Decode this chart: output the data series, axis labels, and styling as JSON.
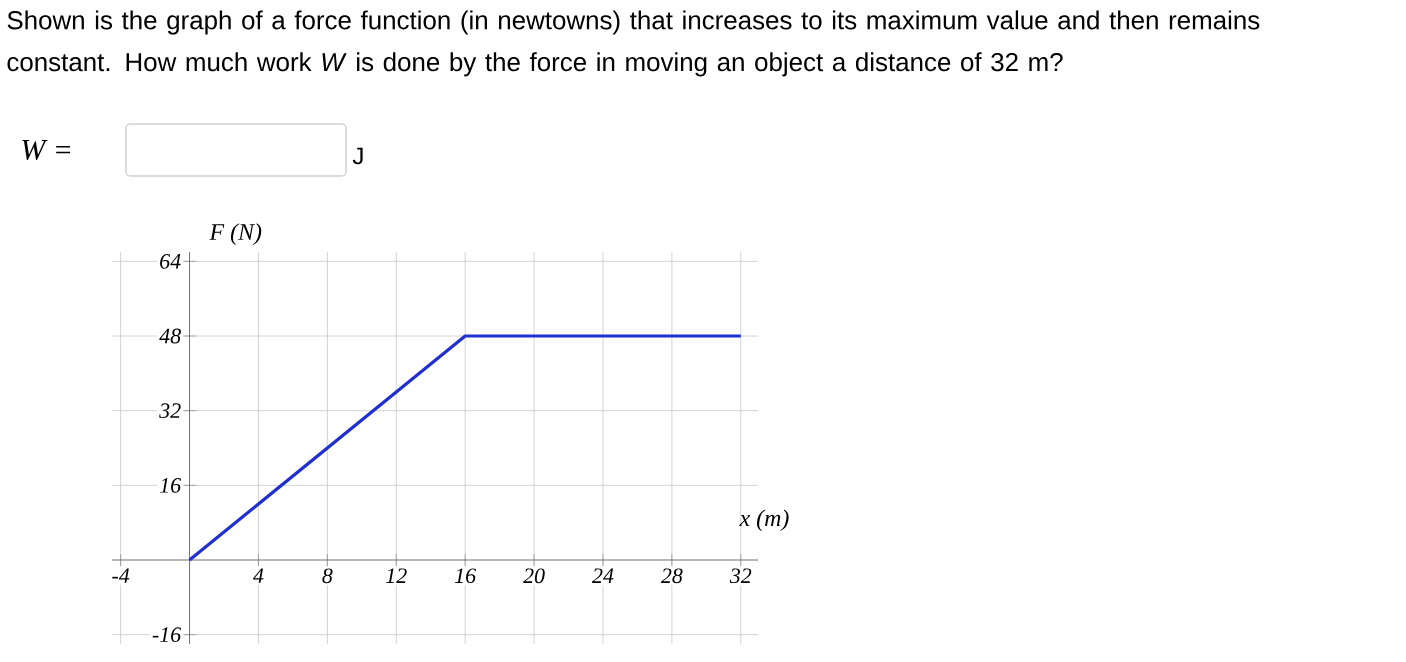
{
  "chart_data": {
    "type": "line",
    "title": "Shown is the graph of a force function (in newtowns) that increases to its maximum value and then remains constant. How much work *W* is done by the force in moving an object a distance of 32 m?",
    "annotations": [
      "W =",
      "J"
    ],
    "xlabel": "x (m)",
    "ylabel": "F (N)",
    "series": [
      {
        "color": "#1f2fd0",
        "x": [
          0,
          16,
          32
        ],
        "values": [
          0,
          48,
          48
        ]
      }
    ],
    "xlim": [
      -4.5,
      33
    ],
    "ylim": [
      -18,
      66
    ],
    "xticks": [
      -4,
      4,
      8,
      12,
      16,
      20,
      24,
      28,
      32
    ],
    "yticks": [
      -16,
      16,
      32,
      48,
      64
    ],
    "grid": true,
    "marker": "none",
    "line_style": "solid"
  }
}
